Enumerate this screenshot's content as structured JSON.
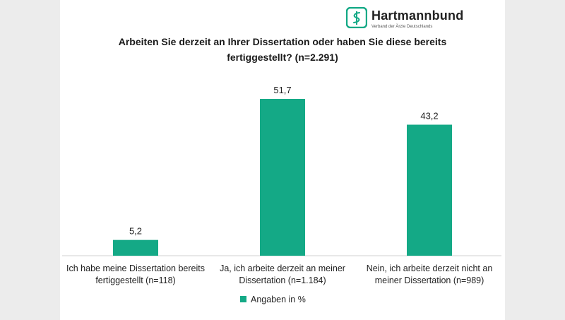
{
  "logo": {
    "name": "Hartmannbund",
    "subtitle": "Verband der Ärzte Deutschlands"
  },
  "colors": {
    "bar": "#14a986",
    "brand": "#14a986",
    "axis": "#d0d0d0",
    "text": "#222222"
  },
  "chart_data": {
    "type": "bar",
    "title": "Arbeiten Sie derzeit an Ihrer Dissertation oder haben Sie diese bereits fertiggestellt? (n=2.291)",
    "categories": [
      "Ich habe meine Dissertation bereits\nfertiggestellt  (n=118)",
      "Ja, ich arbeite derzeit an meiner\nDissertation (n=1.184)",
      "Nein, ich arbeite derzeit nicht an\nmeiner Dissertation (n=989)"
    ],
    "series": [
      {
        "name": "Angaben in %",
        "values": [
          5.2,
          51.7,
          43.2
        ]
      }
    ],
    "data_labels": [
      "5,2",
      "51,7",
      "43,2"
    ],
    "ylim": [
      0,
      51.7
    ],
    "grid": false,
    "legend_position": "bottom"
  }
}
